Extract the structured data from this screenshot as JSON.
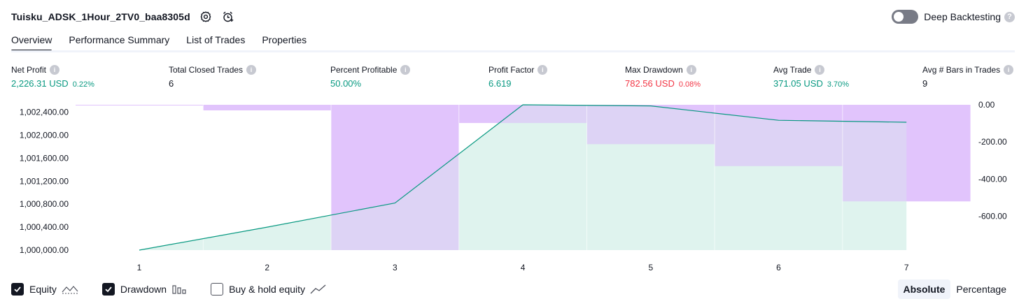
{
  "header": {
    "title": "Tuisku_ADSK_1Hour_2TV0_baa8305d",
    "deep_backtesting_label": "Deep Backtesting",
    "deep_backtesting_enabled": false
  },
  "tabs": [
    {
      "label": "Overview",
      "active": true
    },
    {
      "label": "Performance Summary",
      "active": false
    },
    {
      "label": "List of Trades",
      "active": false
    },
    {
      "label": "Properties",
      "active": false
    }
  ],
  "metrics": {
    "net_profit": {
      "label": "Net Profit",
      "value": "2,226.31",
      "unit": "USD",
      "pct": "0.22%"
    },
    "total_closed_trades": {
      "label": "Total Closed Trades",
      "value": "6"
    },
    "percent_profitable": {
      "label": "Percent Profitable",
      "value": "50.00%"
    },
    "profit_factor": {
      "label": "Profit Factor",
      "value": "6.619"
    },
    "max_drawdown": {
      "label": "Max Drawdown",
      "value": "782.56",
      "unit": "USD",
      "pct": "0.08%"
    },
    "avg_trade": {
      "label": "Avg Trade",
      "value": "371.05",
      "unit": "USD",
      "pct": "3.70%"
    },
    "avg_bars": {
      "label": "Avg # Bars in Trades",
      "value": "9"
    }
  },
  "colors": {
    "equity_line": "#089981",
    "equity_fill": "#d4efe8",
    "drawdown_bar": "#e1c4fc",
    "overlap": "#b3b8e2",
    "positive": "#089981",
    "negative": "#f23645"
  },
  "chart_data": {
    "type": "area",
    "x": [
      1,
      2,
      3,
      4,
      5,
      6,
      7
    ],
    "xlabel": "",
    "series": [
      {
        "name": "Equity",
        "axis": "left",
        "values": [
          1000000.0,
          1000400.0,
          1000820.0,
          1002530.0,
          1002510.0,
          1002260.0,
          1002226.31
        ]
      },
      {
        "name": "Drawdown",
        "axis": "right",
        "type": "bar",
        "values": [
          0,
          -30,
          -782.56,
          -98,
          -212,
          -330,
          -520
        ]
      }
    ],
    "left_axis": {
      "ticks": [
        "1,002,400.00",
        "1,002,000.00",
        "1,001,600.00",
        "1,001,200.00",
        "1,000,800.00",
        "1,000,400.00",
        "1,000,000.00"
      ],
      "range": [
        1000000,
        1002530
      ]
    },
    "right_axis": {
      "ticks": [
        "0.00",
        "-200.00",
        "-400.00",
        "-600.00"
      ],
      "range": [
        -782.56,
        0
      ]
    },
    "grid": false
  },
  "legend": [
    {
      "label": "Equity",
      "checked": true,
      "icon": "equity-line-icon"
    },
    {
      "label": "Drawdown",
      "checked": true,
      "icon": "drawdown-bars-icon"
    },
    {
      "label": "Buy & hold equity",
      "checked": false,
      "icon": "buy-hold-line-icon"
    }
  ],
  "mode": {
    "absolute": "Absolute",
    "percentage": "Percentage",
    "active": "absolute"
  }
}
